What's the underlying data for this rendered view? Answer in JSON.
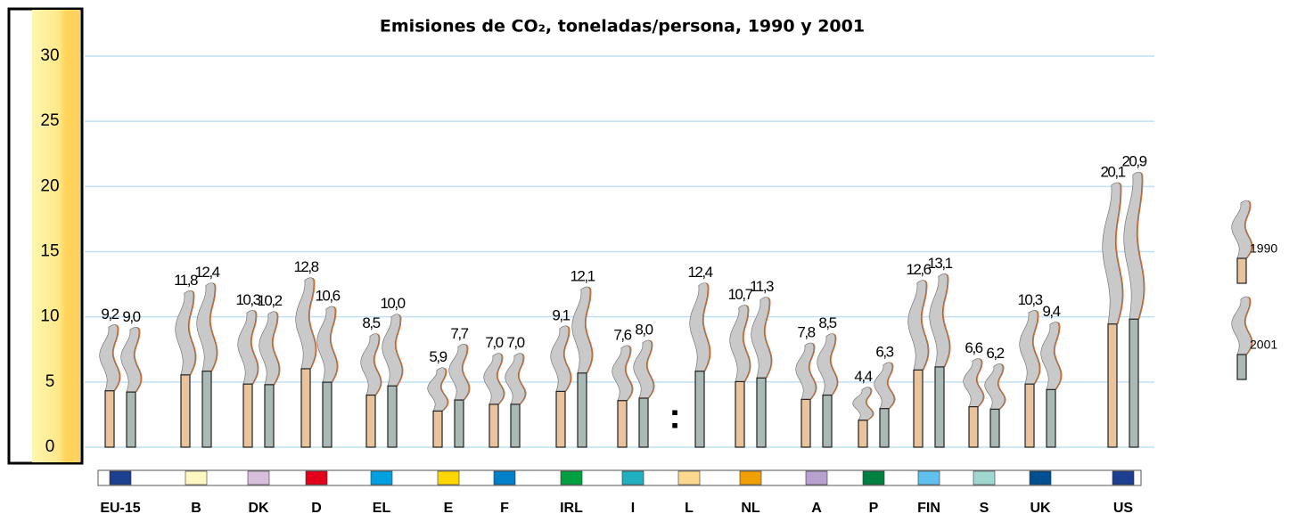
{
  "chart_data": {
    "type": "chimney",
    "title": "Emisiones de CO₂, toneladas/persona, 1990 y 2001",
    "categories": [
      "EU-15",
      "B",
      "DK",
      "D",
      "EL",
      "E",
      "F",
      "IRL",
      "I",
      "L",
      "NL",
      "A",
      "P",
      "FIN",
      "S",
      "UK",
      "US"
    ],
    "category_colors": [
      "#1d3f8f",
      "#fff8c0",
      "#d8c0dc",
      "#e3001b",
      "#00a0e0",
      "#ffd700",
      "#0080c8",
      "#00a040",
      "#20b0c0",
      "#ffd890",
      "#f0a000",
      "#b8a0d0",
      "#008040",
      "#60c0f0",
      "#a0d8d0",
      "#005090",
      "#1d3f8f"
    ],
    "series": [
      {
        "name": "1990",
        "color": "#e8c39c",
        "values": [
          9.2,
          11.8,
          10.3,
          12.8,
          8.5,
          5.9,
          7.0,
          9.1,
          7.6,
          null,
          10.7,
          7.8,
          4.4,
          12.6,
          6.6,
          10.3,
          20.1
        ],
        "value_labels": [
          "9,2",
          "11,8",
          "10,3",
          "12,8",
          "8,5",
          "5,9",
          "7,0",
          "9,1",
          "7,6",
          ":",
          "10,7",
          "7,8",
          "4,4",
          "12,6",
          "6,6",
          "10,3",
          "20,1"
        ]
      },
      {
        "name": "2001",
        "color": "#a9bab6",
        "values": [
          9.0,
          12.4,
          10.2,
          10.6,
          10.0,
          7.7,
          7.0,
          12.1,
          8.0,
          12.4,
          11.3,
          8.5,
          6.3,
          13.1,
          6.2,
          9.4,
          20.9
        ],
        "value_labels": [
          "9,0",
          "12,4",
          "10,2",
          "10,6",
          "10,0",
          "7,7",
          "7,0",
          "12,1",
          "8,0",
          "12,4",
          "11,3",
          "8,5",
          "6,3",
          "13,1",
          "6,2",
          "9,4",
          "20,9"
        ]
      }
    ],
    "ylim": [
      0,
      30
    ],
    "yticks": [
      0,
      5,
      10,
      15,
      20,
      25,
      30
    ],
    "grid": true
  }
}
